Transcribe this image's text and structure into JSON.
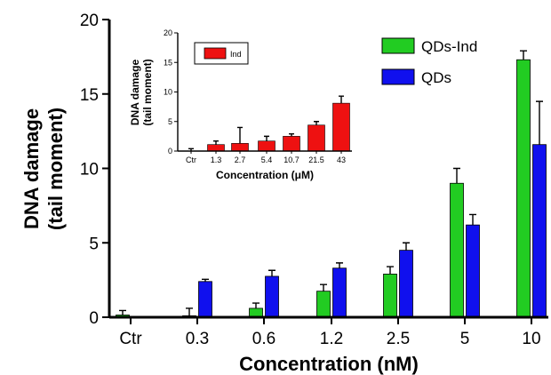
{
  "chart_data": [
    {
      "type": "bar",
      "xlabel": "Concentration (nM)",
      "ylabel_line1": "DNA damage",
      "ylabel_line2": "(tail moment)",
      "categories": [
        "Ctr",
        "0.3",
        "0.6",
        "1.2",
        "2.5",
        "5",
        "10"
      ],
      "ylim": [
        0,
        20
      ],
      "yticks": [
        0,
        5,
        10,
        15,
        20
      ],
      "legend_position": "top-right",
      "series": [
        {
          "name": "QDs-Ind",
          "color": "#22cc22",
          "values": [
            0.15,
            0.1,
            0.6,
            1.75,
            2.9,
            9.0,
            17.3
          ],
          "errors": [
            0.3,
            0.5,
            0.35,
            0.45,
            0.5,
            1.0,
            0.6
          ]
        },
        {
          "name": "QDs",
          "color": "#1010ee",
          "values": [
            0,
            2.4,
            2.75,
            3.3,
            4.5,
            6.2,
            11.6
          ],
          "errors": [
            0,
            0.15,
            0.4,
            0.35,
            0.5,
            0.7,
            2.9
          ]
        }
      ]
    },
    {
      "type": "bar",
      "xlabel": "Concentration (μM)",
      "ylabel_line1": "DNA damage",
      "ylabel_line2": "(tail moment)",
      "categories": [
        "Ctr",
        "1.3",
        "2.7",
        "5.4",
        "10.7",
        "21.5",
        "43"
      ],
      "ylim": [
        0,
        20
      ],
      "yticks": [
        0,
        5,
        10,
        15,
        20
      ],
      "legend_position": "top-left",
      "series": [
        {
          "name": "Ind",
          "color": "#ee1111",
          "values": [
            0,
            1.1,
            1.3,
            1.7,
            2.5,
            4.4,
            8.1
          ],
          "errors": [
            0.4,
            0.6,
            2.7,
            0.8,
            0.4,
            0.6,
            1.2
          ]
        }
      ]
    }
  ]
}
